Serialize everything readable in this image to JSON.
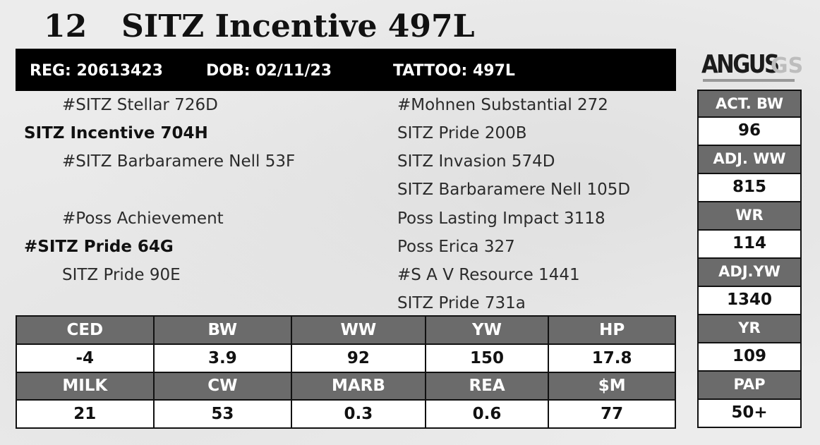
{
  "lot": {
    "number": "12",
    "name": "SITZ Incentive 497L"
  },
  "registration": {
    "reg": "REG: 20613423",
    "dob": "DOB: 02/11/23",
    "tattoo": "TATTOO: 497L"
  },
  "logo": {
    "word": "ANGUS",
    "suffix": "GS"
  },
  "pedigree": {
    "sire_sire": "#SITZ Stellar 726D",
    "sire": "SITZ Incentive 704H",
    "sire_dam": "#SITZ Barbaramere Nell 53F",
    "dam_sire": "#Poss Achievement",
    "dam": "#SITZ Pride 64G",
    "dam_dam": "SITZ Pride 90E",
    "far": [
      "#Mohnen Substantial 272",
      "SITZ Pride 200B",
      "SITZ Invasion 574D",
      "SITZ Barbaramere Nell 105D",
      "Poss Lasting Impact 3118",
      "Poss Erica 327",
      "#S A V Resource 1441",
      "SITZ Pride 731a"
    ]
  },
  "epd": {
    "row1_headers": [
      "CED",
      "BW",
      "WW",
      "YW",
      "HP"
    ],
    "row1_values": [
      "-4",
      "3.9",
      "92",
      "150",
      "17.8"
    ],
    "row2_headers": [
      "MILK",
      "CW",
      "MARB",
      "REA",
      "$M"
    ],
    "row2_values": [
      "21",
      "53",
      "0.3",
      "0.6",
      "77"
    ]
  },
  "performance": [
    {
      "label": "ACT. BW",
      "value": "96"
    },
    {
      "label": "ADJ. WW",
      "value": "815"
    },
    {
      "label": "WR",
      "value": "114"
    },
    {
      "label": "ADJ.YW",
      "value": "1340"
    },
    {
      "label": "YR",
      "value": "109"
    },
    {
      "label": "PAP",
      "value": "50+"
    }
  ],
  "colors": {
    "header_bg": "#000000",
    "cell_header": "#6b6b6b",
    "cell_value": "#ffffff"
  }
}
